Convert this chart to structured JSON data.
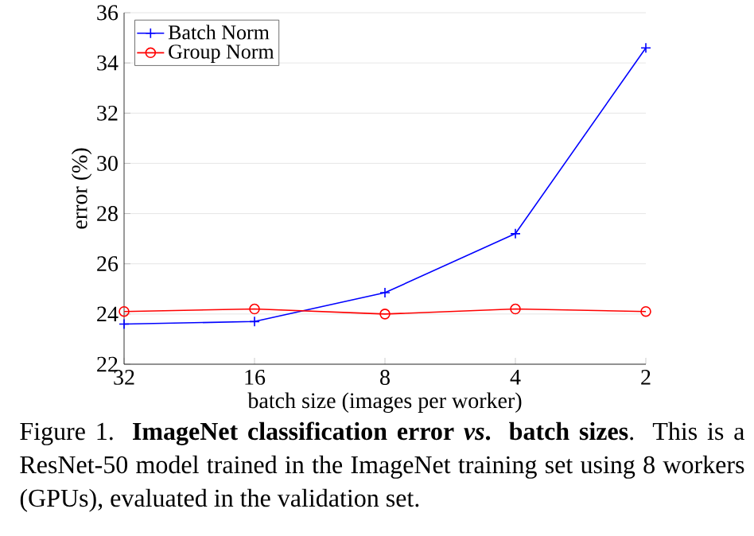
{
  "chart_data": {
    "type": "line",
    "categories": [
      "32",
      "16",
      "8",
      "4",
      "2"
    ],
    "xlabel": "batch size (images per worker)",
    "ylabel": "error (%)",
    "ylim": [
      22,
      36
    ],
    "yticks": [
      22,
      24,
      26,
      28,
      30,
      32,
      34,
      36
    ],
    "grid": "y",
    "legend": "top left",
    "line_style": "solid",
    "series": [
      {
        "name": "Batch Norm",
        "color": "#0000ff",
        "marker": "cross",
        "values": [
          23.6,
          23.7,
          24.85,
          27.2,
          34.6
        ]
      },
      {
        "name": "Group Norm",
        "color": "#ff0000",
        "marker": "circle",
        "values": [
          24.1,
          24.2,
          24.0,
          24.2,
          24.1
        ]
      }
    ],
    "annotations": [
      "Figure 1. **ImageNet classification error** ***vs*.** **batch sizes**. This is a ResNet-50 model trained in the ImageNet training set using 8 workers (GPUs), evaluated in the validation set."
    ]
  }
}
